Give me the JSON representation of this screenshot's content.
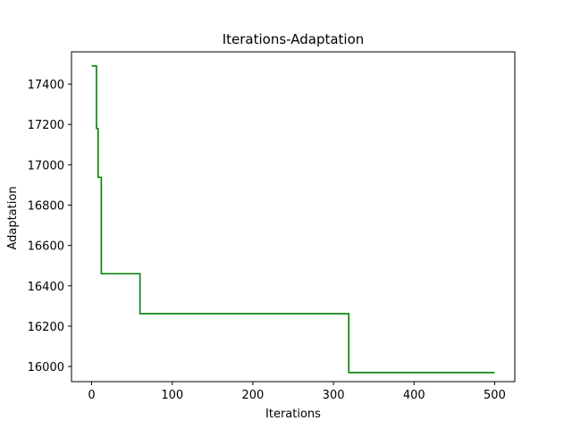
{
  "chart_data": {
    "type": "line",
    "title": "Iterations-Adaptation",
    "xlabel": "Iterations",
    "ylabel": "Adaptation",
    "xlim": [
      -25,
      525
    ],
    "ylim": [
      15925,
      17560
    ],
    "xticks": [
      0,
      100,
      200,
      300,
      400,
      500
    ],
    "xtick_labels": [
      "0",
      "100",
      "200",
      "300",
      "400",
      "500"
    ],
    "yticks": [
      16000,
      16200,
      16400,
      16600,
      16800,
      17000,
      17200,
      17400
    ],
    "ytick_labels": [
      "16000",
      "16200",
      "16400",
      "16600",
      "16800",
      "17000",
      "17200",
      "17400"
    ],
    "grid": false,
    "legend": "none",
    "series": [
      {
        "color": "#008000",
        "step": true,
        "x": [
          0,
          6,
          6,
          8,
          8,
          12,
          12,
          60,
          60,
          319,
          319,
          500
        ],
        "y": [
          17490,
          17490,
          17180,
          17180,
          16938,
          16938,
          16460,
          16460,
          16262,
          16262,
          15970,
          15970
        ]
      }
    ]
  }
}
